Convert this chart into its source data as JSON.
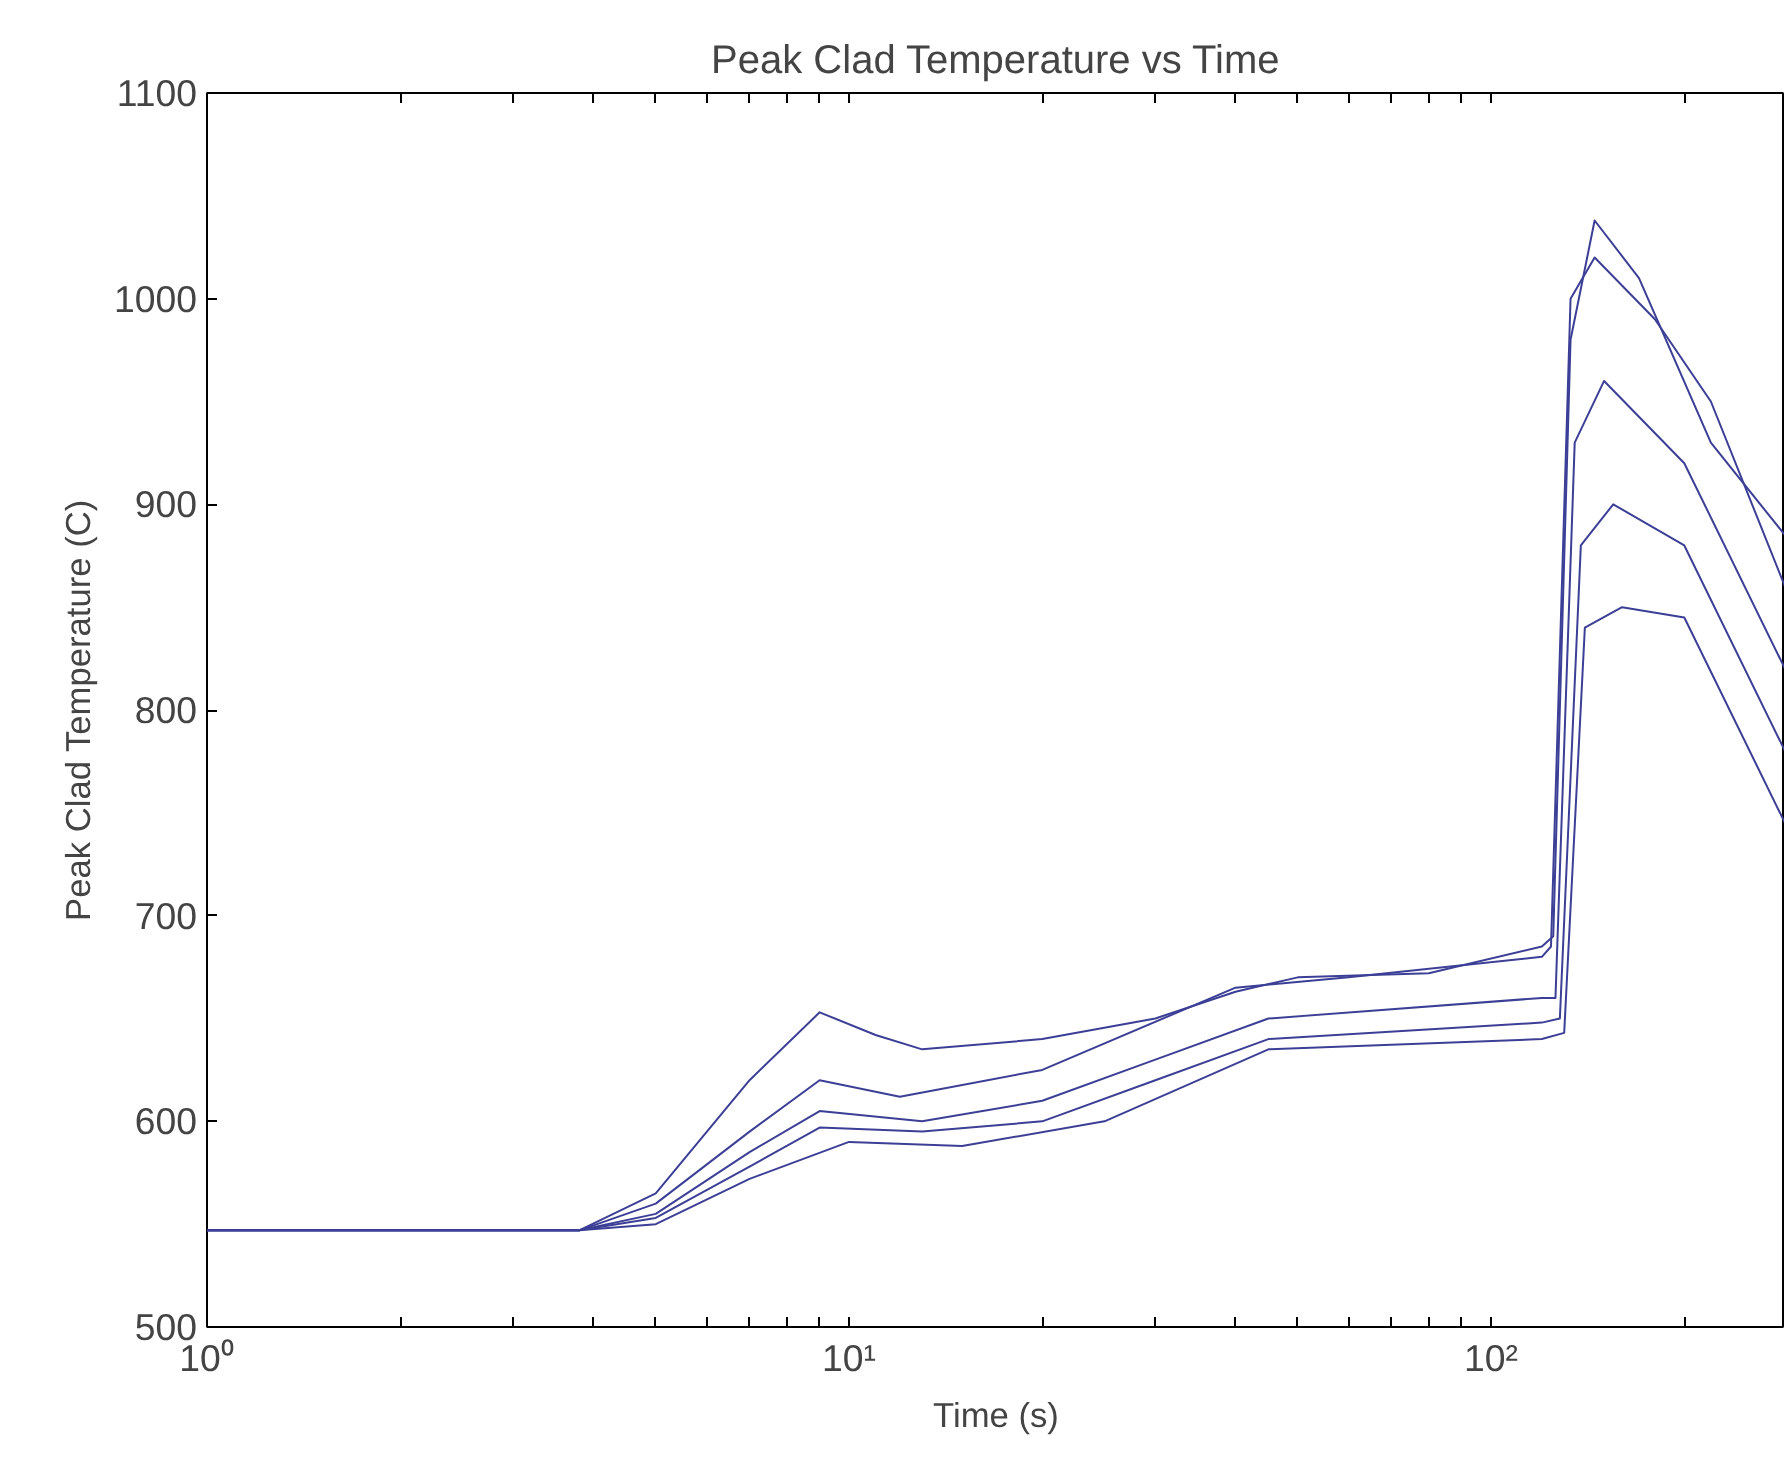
{
  "chart_data": {
    "type": "line",
    "title": "Peak Clad Temperature vs Time",
    "xlabel": "Time (s)",
    "ylabel": "Peak Clad Temperature (C)",
    "log": "x",
    "xlim": [
      1,
      287
    ],
    "ylim": [
      500,
      1100
    ],
    "xticks": [
      {
        "value": 1,
        "label": "10⁰"
      },
      {
        "value": 2,
        "label": null
      },
      {
        "value": 3,
        "label": null
      },
      {
        "value": 4,
        "label": null
      },
      {
        "value": 5,
        "label": null
      },
      {
        "value": 6,
        "label": null
      },
      {
        "value": 7,
        "label": null
      },
      {
        "value": 8,
        "label": null
      },
      {
        "value": 9,
        "label": null
      },
      {
        "value": 10,
        "label": "10¹"
      },
      {
        "value": 20,
        "label": null
      },
      {
        "value": 30,
        "label": null
      },
      {
        "value": 40,
        "label": null
      },
      {
        "value": 50,
        "label": null
      },
      {
        "value": 60,
        "label": null
      },
      {
        "value": 70,
        "label": null
      },
      {
        "value": 80,
        "label": null
      },
      {
        "value": 90,
        "label": null
      },
      {
        "value": 100,
        "label": "10²"
      },
      {
        "value": 200,
        "label": null
      }
    ],
    "yticks": [
      500,
      600,
      700,
      800,
      900,
      1000,
      1100
    ],
    "grid": false,
    "line_style": "solid",
    "series": [
      {
        "color": "#3c3f96",
        "x": [
          1,
          3.8,
          5,
          7,
          9,
          11,
          13,
          20,
          30,
          40,
          50,
          80,
          120,
          125,
          133,
          145,
          170,
          220,
          287
        ],
        "values": [
          547,
          547,
          565,
          620,
          653,
          642,
          635,
          640,
          650,
          663,
          670,
          672,
          685,
          690,
          980,
          1038,
          1010,
          930,
          885
        ]
      },
      {
        "color": "#3c3f96",
        "x": [
          1,
          3.8,
          5,
          7,
          9,
          12,
          20,
          40,
          60,
          120,
          124,
          133,
          145,
          180,
          220,
          287
        ],
        "values": [
          547,
          547,
          560,
          595,
          620,
          612,
          625,
          665,
          670,
          680,
          685,
          1000,
          1020,
          990,
          950,
          860
        ]
      },
      {
        "color": "#3c3f96",
        "x": [
          1,
          3.8,
          5,
          7,
          9,
          13,
          20,
          30,
          45,
          120,
          126,
          135,
          150,
          200,
          287
        ],
        "values": [
          547,
          547,
          555,
          585,
          605,
          600,
          610,
          630,
          650,
          660,
          660,
          930,
          960,
          920,
          820
        ]
      },
      {
        "color": "#3c3f96",
        "x": [
          1,
          3.8,
          5,
          7,
          9,
          13,
          20,
          30,
          45,
          120,
          128,
          138,
          155,
          200,
          287
        ],
        "values": [
          547,
          547,
          553,
          578,
          597,
          595,
          600,
          620,
          640,
          648,
          650,
          880,
          900,
          880,
          780
        ]
      },
      {
        "color": "#3c3f96",
        "x": [
          1,
          3.8,
          5,
          7,
          10,
          15,
          25,
          45,
          120,
          130,
          140,
          160,
          200,
          287
        ],
        "values": [
          547,
          547,
          550,
          572,
          590,
          588,
          600,
          635,
          640,
          643,
          840,
          850,
          845,
          745
        ]
      }
    ]
  }
}
